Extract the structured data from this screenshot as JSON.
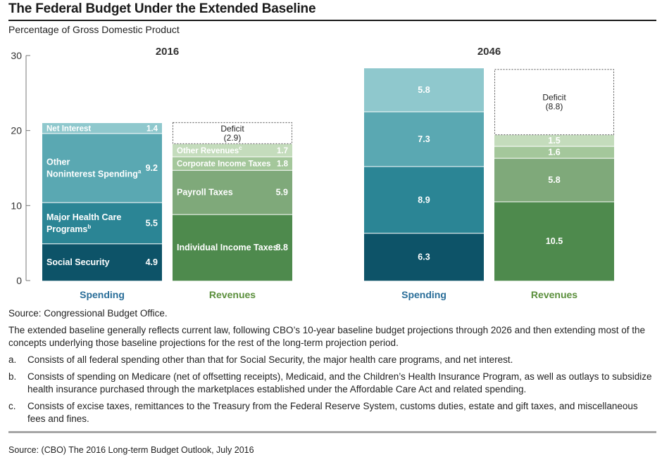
{
  "title": "The Federal Budget Under the Extended Baseline",
  "subtitle": "Percentage of Gross Domestic Product",
  "chart_data": {
    "type": "bar",
    "stacked": true,
    "ylim": [
      0,
      30
    ],
    "yticks": [
      "0",
      "10",
      "20",
      "30"
    ],
    "grid": false,
    "groups": [
      {
        "year": "2016",
        "bars": [
          {
            "name": "Spending",
            "segments": [
              {
                "label": "Social Security",
                "value": 4.9,
                "value_label": "4.9",
                "color": "#0d5368"
              },
              {
                "label": "Major Health Care Programs",
                "sup": "b",
                "value": 5.5,
                "value_label": "5.5",
                "color": "#2b8595"
              },
              {
                "label": "Other Noninterest Spending",
                "sup": "a",
                "value": 9.2,
                "value_label": "9.2",
                "color": "#5aa8b2"
              },
              {
                "label": "Net Interest",
                "value": 1.4,
                "value_label": "1.4",
                "color": "#8fc8cd"
              }
            ]
          },
          {
            "name": "Revenues",
            "segments": [
              {
                "label": "Individual Income Taxes",
                "value": 8.8,
                "value_label": "8.8",
                "color": "#4e8a4d"
              },
              {
                "label": "Payroll Taxes",
                "value": 5.9,
                "value_label": "5.9",
                "color": "#7fa97a"
              },
              {
                "label": "Corporate Income Taxes",
                "value": 1.8,
                "value_label": "1.8",
                "color": "#a4c79b"
              },
              {
                "label": "Other Revenues",
                "sup": "c",
                "value": 1.7,
                "value_label": "1.7",
                "color": "#c4dcbc"
              },
              {
                "label": "Deficit",
                "value": 2.9,
                "value_label": "(2.9)",
                "color": "#ffffff",
                "dashed": true
              }
            ]
          }
        ]
      },
      {
        "year": "2046",
        "bars": [
          {
            "name": "Spending",
            "segments": [
              {
                "label": "",
                "value": 6.3,
                "value_label": "6.3",
                "color": "#0d5368"
              },
              {
                "label": "",
                "value": 8.9,
                "value_label": "8.9",
                "color": "#2b8595"
              },
              {
                "label": "",
                "value": 7.3,
                "value_label": "7.3",
                "color": "#5aa8b2"
              },
              {
                "label": "",
                "value": 5.8,
                "value_label": "5.8",
                "color": "#8fc8cd"
              }
            ]
          },
          {
            "name": "Revenues",
            "segments": [
              {
                "label": "",
                "value": 10.5,
                "value_label": "10.5",
                "color": "#4e8a4d"
              },
              {
                "label": "",
                "value": 5.8,
                "value_label": "5.8",
                "color": "#7fa97a"
              },
              {
                "label": "",
                "value": 1.6,
                "value_label": "1.6",
                "color": "#a4c79b"
              },
              {
                "label": "",
                "value": 1.5,
                "value_label": "1.5",
                "color": "#c4dcbc"
              },
              {
                "label": "Deficit",
                "value": 8.8,
                "value_label": "(8.8)",
                "color": "#ffffff",
                "dashed": true
              }
            ]
          }
        ]
      }
    ],
    "bar_label_colors": {
      "Spending": "#2a6e99",
      "Revenues": "#5b8f3c"
    }
  },
  "notes": {
    "source": "Source: Congressional Budget Office.",
    "description": "The extended baseline generally reflects current law, following CBO’s 10-year baseline budget projections through 2026 and then extending most of the concepts underlying those baseline projections for the rest of the long-term projection period.",
    "footnotes": [
      {
        "label": "a.",
        "text": "Consists of all federal spending other than that for Social Security, the major health care programs, and net interest."
      },
      {
        "label": "b.",
        "text": "Consists of spending on Medicare (net of offsetting receipts), Medicaid, and the Children’s Health Insurance Program, as well as outlays to subsidize health insurance purchased through the marketplaces established under the Affordable Care Act and related spending."
      },
      {
        "label": "c.",
        "text": "Consists of excise taxes, remittances to the Treasury from the Federal Reserve System, customs duties, estate and gift taxes, and miscellaneous fees and fines."
      }
    ]
  },
  "source_line": "Source: (CBO) The 2016 Long-term Budget Outlook, July 2016"
}
